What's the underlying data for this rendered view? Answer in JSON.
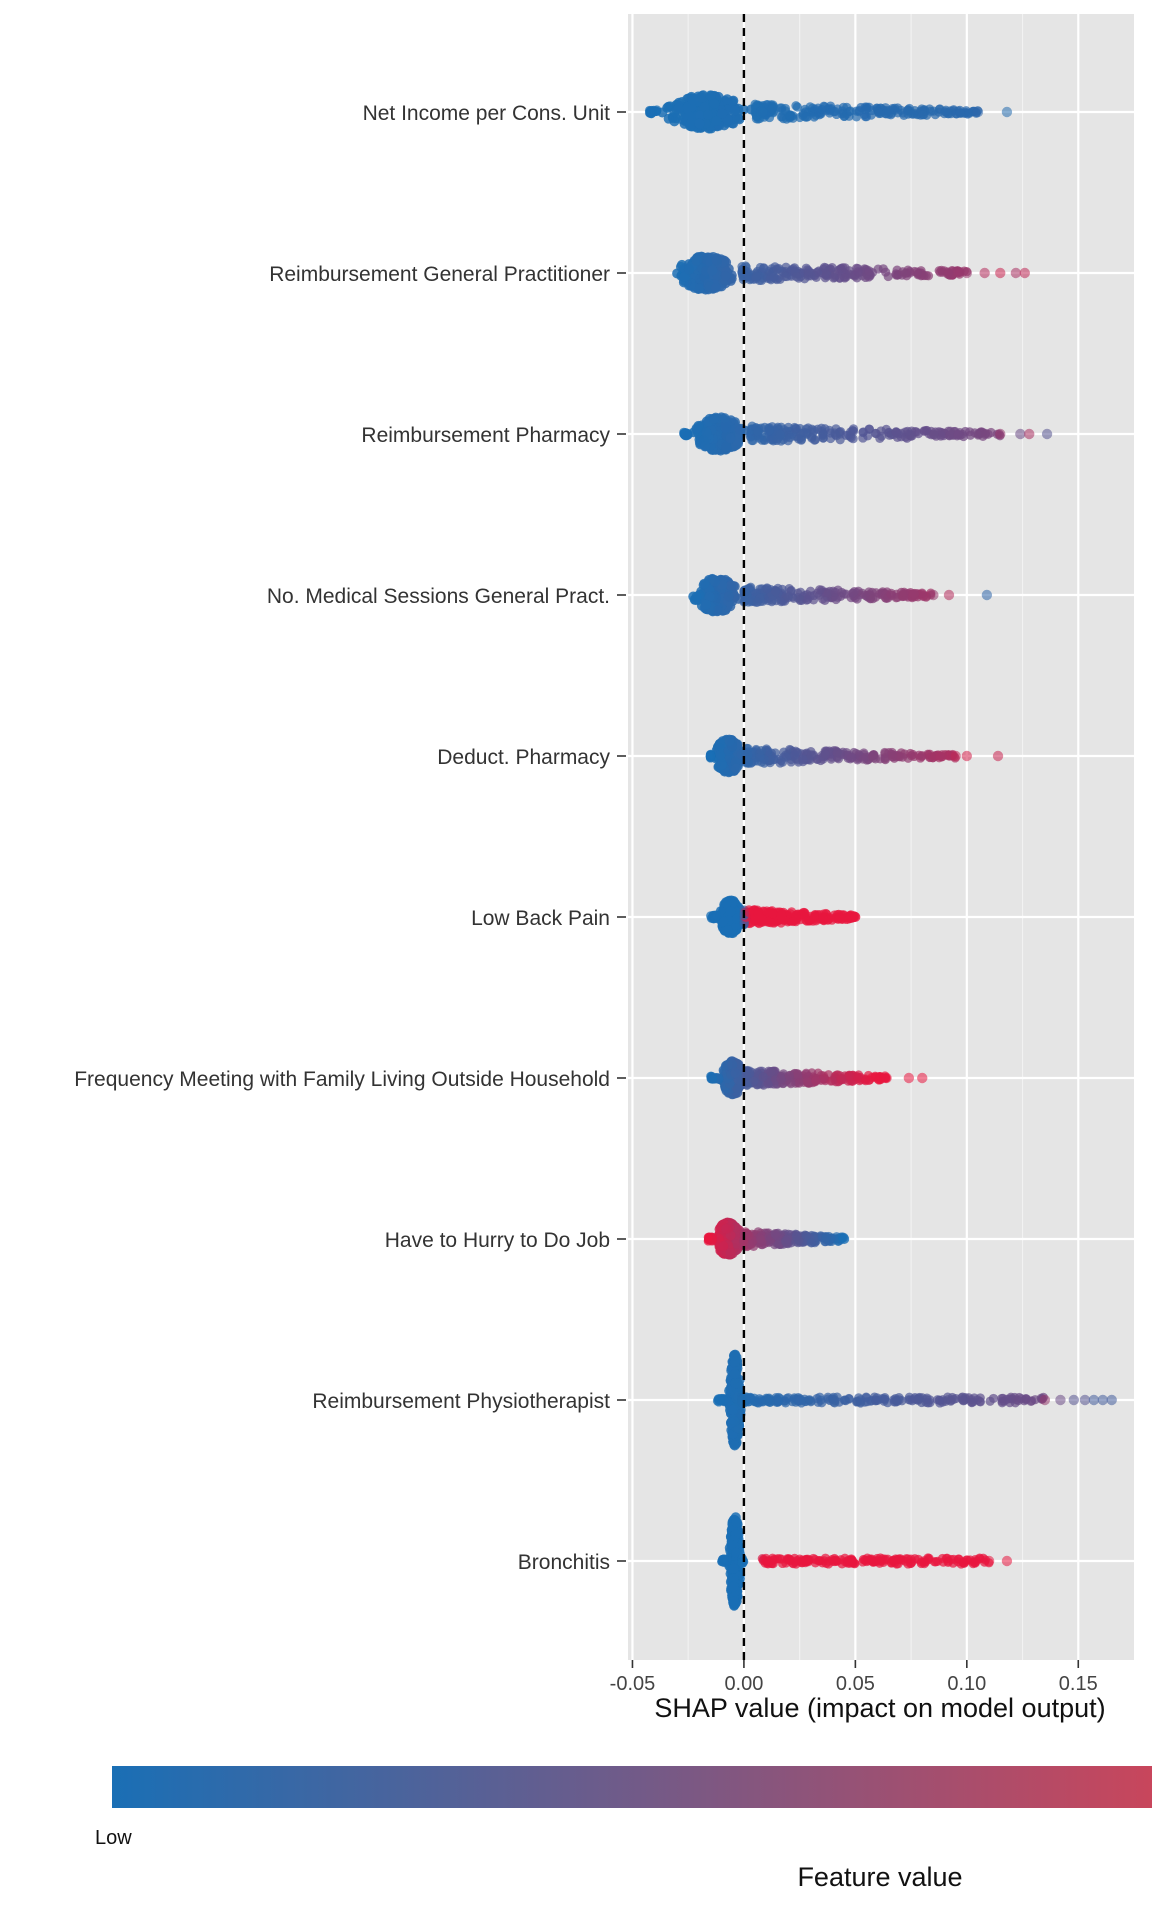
{
  "chart_data": {
    "type": "scatter",
    "subtype": "shap-beeswarm",
    "title": "",
    "xlabel": "SHAP value (impact on model output)",
    "ylabel": "",
    "xlim": [
      -0.052,
      0.175
    ],
    "xticks": [
      -0.05,
      0.0,
      0.05,
      0.1,
      0.15
    ],
    "xtick_labels": [
      "-0.05",
      "0.00",
      "0.05",
      "0.10",
      "0.15"
    ],
    "reference_line": {
      "x": 0.0,
      "style": "dashed",
      "color": "#000000"
    },
    "grid": true,
    "background": "#e5e5e5",
    "colors": {
      "low": "#1a6fb5",
      "high": "#e8173f"
    },
    "legend": {
      "type": "colorbar",
      "placement": "bottom",
      "title": "Feature value",
      "low_label": "Low"
    },
    "features": [
      {
        "name": "Net Income per Cons. Unit",
        "min": -0.043,
        "max": 0.118,
        "dense_center": -0.017,
        "dense_halfwidth": 0.022,
        "high_side": "left",
        "low_side": "right",
        "trend": [
          [
            -0.043,
            0.0
          ],
          [
            0.105,
            0.08
          ]
        ],
        "outliers": [
          [
            0.105,
            0.1
          ],
          [
            0.118,
            0.05
          ]
        ]
      },
      {
        "name": "Reimbursement General Practitioner",
        "min": -0.031,
        "max": 0.126,
        "dense_center": -0.017,
        "dense_halfwidth": 0.016,
        "trend": [
          [
            -0.031,
            0.0
          ],
          [
            0.126,
            0.75
          ]
        ],
        "outliers": [
          [
            0.1,
            0.6
          ],
          [
            0.108,
            0.75
          ],
          [
            0.115,
            0.85
          ],
          [
            0.122,
            0.7
          ],
          [
            0.126,
            0.8
          ]
        ]
      },
      {
        "name": "Reimbursement Pharmacy",
        "min": -0.027,
        "max": 0.136,
        "dense_center": -0.011,
        "dense_halfwidth": 0.014,
        "trend": [
          [
            -0.027,
            0.0
          ],
          [
            0.136,
            0.55
          ]
        ],
        "outliers": [
          [
            0.115,
            0.6
          ],
          [
            0.124,
            0.4
          ],
          [
            0.128,
            0.7
          ],
          [
            0.136,
            0.3
          ]
        ]
      },
      {
        "name": "No. Medical Sessions General Pract.",
        "min": -0.023,
        "max": 0.109,
        "dense_center": -0.012,
        "dense_halfwidth": 0.012,
        "trend": [
          [
            -0.023,
            0.0
          ],
          [
            0.092,
            0.7
          ]
        ],
        "outliers": [
          [
            0.085,
            0.6
          ],
          [
            0.092,
            0.75
          ],
          [
            0.109,
            0.1
          ]
        ]
      },
      {
        "name": "Deduct. Pharmacy",
        "min": -0.015,
        "max": 0.114,
        "dense_center": -0.007,
        "dense_halfwidth": 0.008,
        "trend": [
          [
            -0.015,
            0.0
          ],
          [
            0.114,
            0.85
          ]
        ],
        "outliers": [
          [
            0.095,
            0.8
          ],
          [
            0.1,
            0.9
          ],
          [
            0.114,
            0.85
          ]
        ]
      },
      {
        "name": "Low Back Pain",
        "min": -0.015,
        "max": 0.05,
        "dense_center": -0.006,
        "dense_halfwidth": 0.006,
        "trend": [
          [
            -0.015,
            0.0
          ],
          [
            0.0,
            0.0
          ],
          [
            0.001,
            1.0
          ],
          [
            0.05,
            1.0
          ]
        ],
        "outliers": []
      },
      {
        "name": "Frequency Meeting with Family Living Outside Household",
        "min": -0.015,
        "max": 0.08,
        "dense_center": -0.005,
        "dense_halfwidth": 0.006,
        "trend": [
          [
            -0.015,
            0.0
          ],
          [
            0.058,
            1.0
          ]
        ],
        "outliers": [
          [
            0.064,
            1.0
          ],
          [
            0.074,
            1.0
          ],
          [
            0.08,
            1.0
          ]
        ]
      },
      {
        "name": "Have to Hurry to Do Job",
        "min": -0.016,
        "max": 0.045,
        "dense_center": -0.007,
        "dense_halfwidth": 0.007,
        "high_side": "left",
        "low_side": "right",
        "trend": [
          [
            -0.016,
            1.0
          ],
          [
            0.003,
            0.6
          ],
          [
            0.045,
            0.0
          ]
        ],
        "outliers": []
      },
      {
        "name": "Reimbursement Physiotherapist",
        "min": -0.012,
        "max": 0.165,
        "dense_center": -0.004,
        "dense_halfwidth": 0.003,
        "trend": [
          [
            -0.012,
            0.0
          ],
          [
            0.165,
            0.5
          ]
        ],
        "outliers": [
          [
            0.135,
            0.6
          ],
          [
            0.142,
            0.4
          ],
          [
            0.148,
            0.3
          ],
          [
            0.153,
            0.3
          ],
          [
            0.157,
            0.2
          ],
          [
            0.161,
            0.2
          ],
          [
            0.165,
            0.2
          ]
        ]
      },
      {
        "name": "Bronchitis",
        "min": -0.01,
        "max": 0.118,
        "dense_center": -0.004,
        "dense_halfwidth": 0.003,
        "gap": [
          0.0,
          0.008
        ],
        "trend": [
          [
            -0.01,
            0.0
          ],
          [
            0.0,
            0.0
          ],
          [
            0.009,
            1.0
          ],
          [
            0.118,
            1.0
          ]
        ],
        "outliers": [
          [
            0.11,
            1.0
          ],
          [
            0.118,
            1.0
          ]
        ]
      }
    ]
  }
}
